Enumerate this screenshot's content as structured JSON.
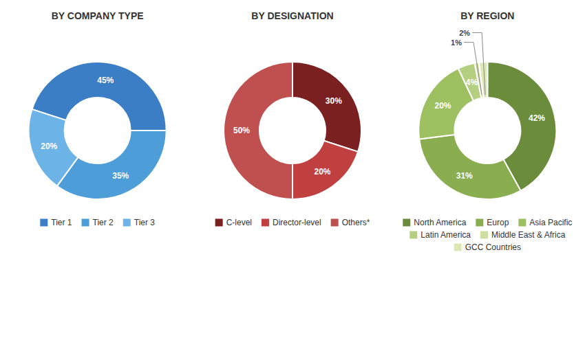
{
  "chart_data": [
    {
      "type": "donut",
      "title": "BY COMPANY TYPE",
      "categories": [
        "Tier 1",
        "Tier 2",
        "Tier 3"
      ],
      "values": [
        45,
        35,
        20
      ],
      "value_labels": [
        "45%",
        "35%",
        "20%"
      ],
      "colors": [
        "#3C7EC5",
        "#4D9DD8",
        "#6CB4E8"
      ],
      "data_labels": true,
      "legend": "bottom"
    },
    {
      "type": "donut",
      "title": "BY DESIGNATION",
      "categories": [
        "C-level",
        "Director-level",
        "Others*"
      ],
      "values": [
        30,
        20,
        50
      ],
      "value_labels": [
        "30%",
        "20%",
        "50%"
      ],
      "colors": [
        "#7B2020",
        "#C04040",
        "#C05050"
      ],
      "data_labels": true,
      "legend": "bottom"
    },
    {
      "type": "donut",
      "title": "BY REGION",
      "categories": [
        "North America",
        "Europ",
        "Asia Pacific",
        "Latin America",
        "Middle East & Africa",
        "GCC Countries"
      ],
      "values": [
        42,
        31,
        20,
        4,
        1,
        2
      ],
      "value_labels": [
        "42%",
        "31%",
        "20%",
        "4%",
        "1%",
        "2%"
      ],
      "colors": [
        "#6B8C3A",
        "#8AAD50",
        "#9DC060",
        "#B5CF80",
        "#CCDEA0",
        "#DDE8B8"
      ],
      "data_labels": true,
      "legend": "bottom"
    }
  ]
}
